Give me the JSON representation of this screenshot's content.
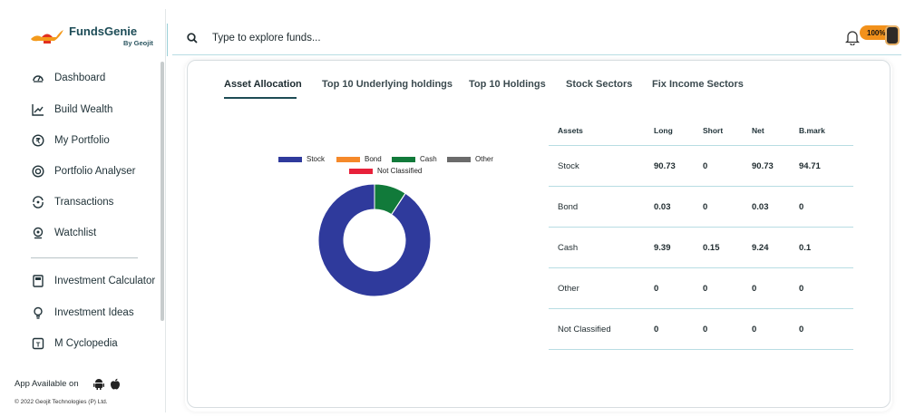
{
  "brand": {
    "name": "FundsGenie",
    "sub": "By Geojit"
  },
  "search": {
    "placeholder": "Type to explore funds..."
  },
  "header": {
    "battery_label": "100%"
  },
  "nav": {
    "items": [
      {
        "label": "Dashboard",
        "icon": "dashboard-icon"
      },
      {
        "label": "Build Wealth",
        "icon": "chart-up-icon"
      },
      {
        "label": "My Portfolio",
        "icon": "portfolio-icon"
      },
      {
        "label": "Portfolio Analyser",
        "icon": "analyser-icon"
      },
      {
        "label": "Transactions",
        "icon": "transactions-icon"
      },
      {
        "label": "Watchlist",
        "icon": "watchlist-icon"
      },
      {
        "label": "Investment Calculator",
        "icon": "calculator-icon"
      },
      {
        "label": "Investment Ideas",
        "icon": "bulb-icon"
      },
      {
        "label": "M Cyclopedia",
        "icon": "book-icon"
      }
    ]
  },
  "footer": {
    "app_available": "App Available on",
    "copyright": "© 2022 Geojit Technologies (P) Ltd."
  },
  "tabs": [
    "Asset Allocation",
    "Top 10 Underlying holdings",
    "Top 10 Holdings",
    "Stock Sectors",
    "Fix Income Sectors"
  ],
  "active_tab": "Asset Allocation",
  "legend": [
    {
      "label": "Stock",
      "color": "#2f3a9c"
    },
    {
      "label": "Bond",
      "color": "#f5892a"
    },
    {
      "label": "Cash",
      "color": "#117a3a"
    },
    {
      "label": "Other",
      "color": "#6b6b6b"
    },
    {
      "label": "Not Classified",
      "color": "#e8213a"
    }
  ],
  "chart_data": {
    "type": "pie",
    "categories": [
      "Stock",
      "Bond",
      "Cash",
      "Other",
      "Not Classified"
    ],
    "values": [
      90.73,
      0.03,
      9.24,
      0,
      0
    ],
    "colors": [
      "#2f3a9c",
      "#f5892a",
      "#117a3a",
      "#6b6b6b",
      "#e8213a"
    ],
    "donut": true,
    "legend_position": "top"
  },
  "table": {
    "headers": [
      "Assets",
      "Long",
      "Short",
      "Net",
      "B.mark"
    ],
    "rows": [
      [
        "Stock",
        "90.73",
        "0",
        "90.73",
        "94.71"
      ],
      [
        "Bond",
        "0.03",
        "0",
        "0.03",
        "0"
      ],
      [
        "Cash",
        "9.39",
        "0.15",
        "9.24",
        "0.1"
      ],
      [
        "Other",
        "0",
        "0",
        "0",
        "0"
      ],
      [
        "Not Classified",
        "0",
        "0",
        "0",
        "0"
      ]
    ]
  }
}
